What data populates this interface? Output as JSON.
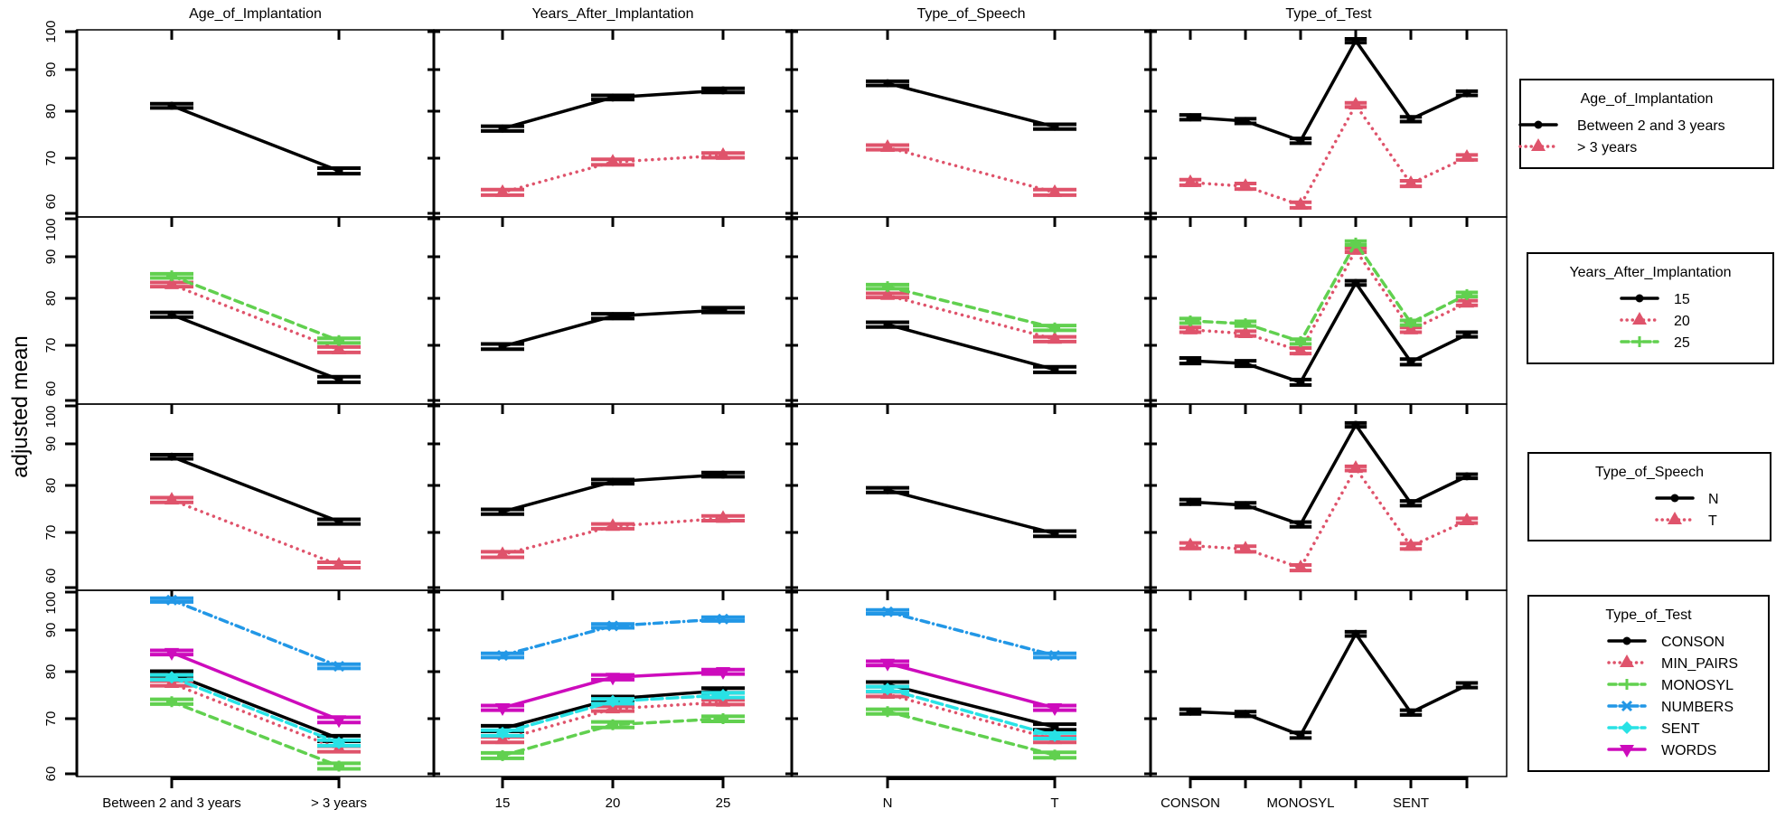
{
  "chart_data": {
    "type": "line",
    "title": "",
    "ylabel": "adjusted mean",
    "ylim": [
      60,
      100
    ],
    "yticks": [
      60,
      70,
      80,
      90,
      100
    ],
    "grid": false,
    "legend_placement": "right",
    "factors": [
      {
        "name": "Age_of_Implantation",
        "levels": [
          "Between 2 and 3 years",
          "> 3 years"
        ],
        "tick_labels": [
          "Between 2 and 3 years",
          "> 3 years"
        ]
      },
      {
        "name": "Years_After_Implantation",
        "levels": [
          "15",
          "20",
          "25"
        ],
        "tick_labels": [
          "15",
          "20",
          "25"
        ]
      },
      {
        "name": "Type_of_Speech",
        "levels": [
          "N",
          "T"
        ],
        "tick_labels": [
          "N",
          "T"
        ]
      },
      {
        "name": "Type_of_Test",
        "levels": [
          "CONSON",
          "MIN_PAIRS",
          "MONOSYL",
          "NUMBERS",
          "SENT",
          "WORDS"
        ],
        "tick_labels": [
          "CONSON",
          "",
          "MONOSYL",
          "",
          "SENT",
          ""
        ]
      }
    ],
    "series_styles": [
      {
        "color": "#000000",
        "marker": "circle",
        "line": "solid"
      },
      {
        "color": "#DF536B",
        "marker": "triangle",
        "line": "dotted"
      },
      {
        "color": "#61D04F",
        "marker": "plus",
        "line": "dashed"
      },
      {
        "color": "#2297E6",
        "marker": "x",
        "line": "dotdash"
      },
      {
        "color": "#28E2E5",
        "marker": "diamond",
        "line": "longdash"
      },
      {
        "color": "#CD0BBC",
        "marker": "triangle-down",
        "line": "solid"
      }
    ],
    "ci_halfwidth": 0.5,
    "panels": [
      [
        {
          "series": [
            [
              81.3,
              67.7
            ]
          ]
        },
        {
          "series": [
            [
              76.3,
              83.3,
              85.0
            ],
            [
              63.8,
              69.3,
              70.6
            ]
          ]
        },
        {
          "series": [
            [
              86.7,
              76.7
            ],
            [
              72.3,
              63.8
            ]
          ]
        },
        {
          "series": [
            [
              78.7,
              77.9,
              73.7,
              97.6,
              78.3,
              84.3
            ],
            [
              65.6,
              64.9,
              61.5,
              81.5,
              65.4,
              70.2
            ]
          ]
        }
      ],
      [
        {
          "series": [
            [
              76.5,
              63.8
            ],
            [
              83.3,
              69.2
            ],
            [
              85.4,
              71.0
            ]
          ]
        },
        {
          "series": [
            [
              69.8,
              76.2,
              77.5
            ]
          ]
        },
        {
          "series": [
            [
              74.4,
              65.6
            ],
            [
              80.7,
              71.3
            ],
            [
              82.8,
              73.7
            ]
          ]
        },
        {
          "series": [
            [
              67.2,
              66.7,
              63.3,
              83.7,
              67.0,
              72.3
            ],
            [
              73.3,
              72.5,
              69.0,
              91.7,
              73.3,
              79.0
            ],
            [
              75.2,
              74.6,
              70.8,
              93.6,
              74.8,
              80.9
            ]
          ]
        }
      ],
      [
        {
          "series": [
            [
              86.9,
              72.3
            ],
            [
              76.9,
              64.1
            ]
          ]
        },
        {
          "series": [
            [
              74.4,
              80.9,
              82.6
            ],
            [
              66.0,
              71.3,
              73.0
            ]
          ]
        },
        {
          "series": [
            [
              79.0,
              69.8
            ]
          ]
        },
        {
          "series": [
            [
              76.5,
              75.8,
              71.7,
              95.0,
              76.2,
              82.2
            ],
            [
              67.6,
              67.0,
              63.6,
              84.1,
              67.5,
              72.5
            ]
          ]
        }
      ],
      [
        {
          "series": [
            [
              79.6,
              66.4
            ],
            [
              77.5,
              64.5
            ],
            [
              73.6,
              61.4
            ],
            [
              97.9,
              81.3
            ],
            [
              78.8,
              65.6
            ],
            [
              84.6,
              69.8
            ]
          ]
        },
        {
          "series": [
            [
              68.2,
              74.2,
              76.0
            ],
            [
              66.2,
              72.1,
              73.5
            ],
            [
              63.3,
              68.9,
              70.0
            ],
            [
              83.9,
              91.1,
              92.9
            ],
            [
              67.4,
              73.7,
              75.0
            ],
            [
              72.3,
              78.8,
              80.0
            ]
          ]
        },
        {
          "series": [
            [
              77.3,
              68.5
            ],
            [
              75.2,
              66.2
            ],
            [
              71.5,
              63.4
            ],
            [
              94.8,
              83.9
            ],
            [
              76.3,
              66.9
            ],
            [
              82.0,
              72.3
            ]
          ]
        },
        {
          "series": [
            [
              71.5,
              71.0,
              67.0,
              89.1,
              71.3,
              77.1
            ]
          ]
        }
      ]
    ]
  }
}
